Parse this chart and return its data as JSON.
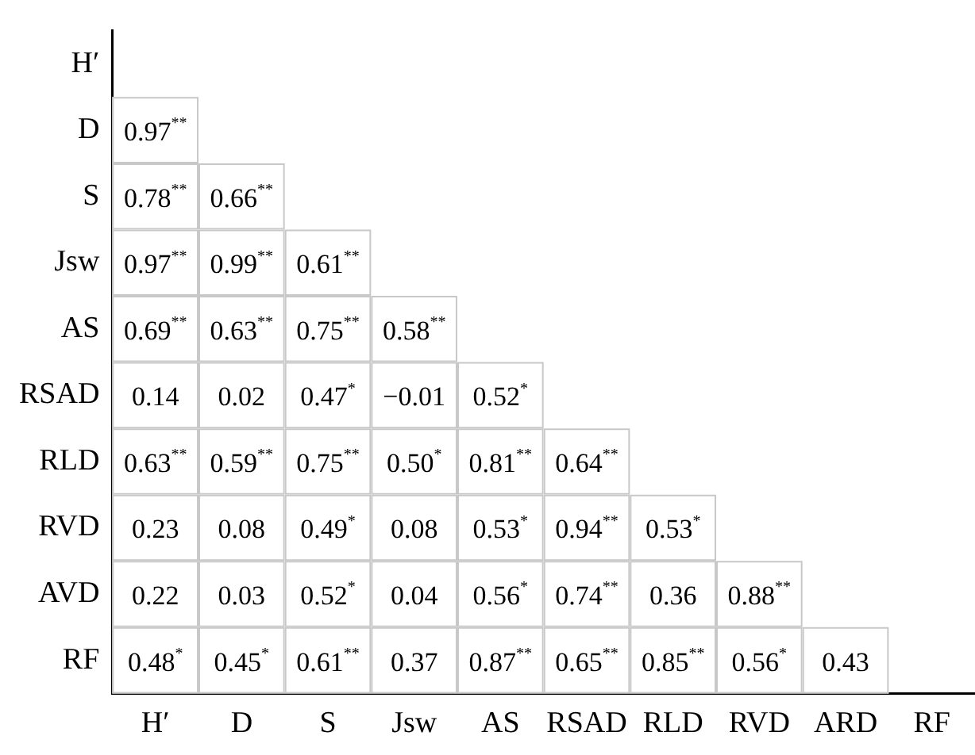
{
  "chart_data": {
    "type": "heatmap",
    "categories": [
      "H′",
      "D",
      "S",
      "Jsw",
      "AS",
      "RSAD",
      "RLD",
      "RVD",
      "ARD",
      "RF"
    ],
    "y_categories": [
      "H′",
      "D",
      "S",
      "Jsw",
      "AS",
      "RSAD",
      "RLD",
      "RVD",
      "AVD",
      "RF"
    ],
    "cells": [
      [
        null,
        null,
        null,
        null,
        null,
        null,
        null,
        null,
        null,
        null
      ],
      [
        0.97,
        null,
        null,
        null,
        null,
        null,
        null,
        null,
        null,
        null
      ],
      [
        0.78,
        0.66,
        null,
        null,
        null,
        null,
        null,
        null,
        null,
        null
      ],
      [
        0.97,
        0.99,
        0.61,
        null,
        null,
        null,
        null,
        null,
        null,
        null
      ],
      [
        0.69,
        0.63,
        0.75,
        0.58,
        null,
        null,
        null,
        null,
        null,
        null
      ],
      [
        0.14,
        0.02,
        0.47,
        -0.01,
        0.52,
        null,
        null,
        null,
        null,
        null
      ],
      [
        0.63,
        0.59,
        0.75,
        0.5,
        0.81,
        0.64,
        null,
        null,
        null,
        null
      ],
      [
        0.23,
        0.08,
        0.49,
        0.08,
        0.53,
        0.94,
        0.53,
        null,
        null,
        null
      ],
      [
        0.22,
        0.03,
        0.52,
        0.04,
        0.56,
        0.74,
        0.36,
        0.88,
        null,
        null
      ],
      [
        0.48,
        0.45,
        0.61,
        0.37,
        0.87,
        0.65,
        0.85,
        0.56,
        0.43,
        null
      ]
    ],
    "cell_labels": [
      [
        null,
        null,
        null,
        null,
        null,
        null,
        null,
        null,
        null,
        null
      ],
      [
        "0.97$^{**}$",
        null,
        null,
        null,
        null,
        null,
        null,
        null,
        null,
        null
      ],
      [
        "0.78$^{**}$",
        "0.66$^{**}$",
        null,
        null,
        null,
        null,
        null,
        null,
        null,
        null
      ],
      [
        "0.97$^{**}$",
        "0.99$^{**}$",
        "0.61$^{**}$",
        null,
        null,
        null,
        null,
        null,
        null,
        null
      ],
      [
        "0.69$^{**}$",
        "0.63$^{**}$",
        "0.75$^{**}$",
        "0.58$^{**}$",
        null,
        null,
        null,
        null,
        null,
        null
      ],
      [
        "0.14",
        "0.02",
        "0.47$^{*}$",
        "−0.01",
        "0.52$^{*}$",
        null,
        null,
        null,
        null,
        null
      ],
      [
        "0.63$^{**}$",
        "0.59$^{**}$",
        "0.75$^{**}$",
        "0.50$^{*}$",
        "0.81$^{**}$",
        "0.64$^{**}$",
        null,
        null,
        null,
        null
      ],
      [
        "0.23",
        "0.08",
        "0.49$^{*}$",
        "0.08",
        "0.53$^{*}$",
        "0.94$^{**}$",
        "0.53$^{*}$",
        null,
        null,
        null
      ],
      [
        "0.22",
        "0.03",
        "0.52$^{*}$",
        "0.04",
        "0.56$^{*}$",
        "0.74$^{**}$",
        "0.36",
        "0.88$^{**}$",
        null,
        null
      ],
      [
        "0.48$^{*}$",
        "0.45$^{*}$",
        "0.61$^{**}$",
        "0.37",
        "0.87$^{**}$",
        "0.65$^{**}$",
        "0.85$^{**}$",
        "0.56$^{*}$",
        "0.43",
        null
      ]
    ]
  }
}
